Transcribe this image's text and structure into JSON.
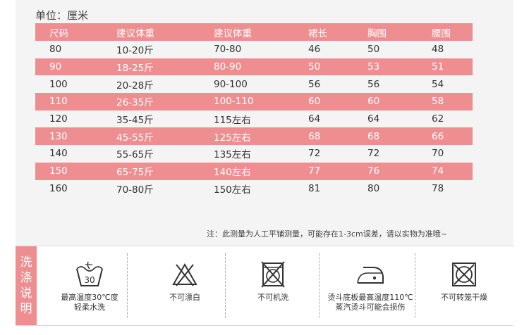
{
  "unit_label": "单位：厘米",
  "table": {
    "headers": [
      "尺码",
      "建议体重",
      "建议体重",
      "裙长",
      "胸围",
      "腰围"
    ],
    "rows": [
      [
        "80",
        "10-20斤",
        "70-80",
        "46",
        "50",
        "48"
      ],
      [
        "90",
        "18-25斤",
        "80-90",
        "50",
        "53",
        "51"
      ],
      [
        "100",
        "20-28斤",
        "90-100",
        "56",
        "56",
        "54"
      ],
      [
        "110",
        "26-35斤",
        "100-110",
        "60",
        "60",
        "58"
      ],
      [
        "120",
        "35-45斤",
        "115左右",
        "64",
        "64",
        "62"
      ],
      [
        "130",
        "45-55斤",
        "125左右",
        "68",
        "68",
        "66"
      ],
      [
        "140",
        "55-65斤",
        "135左右",
        "72",
        "72",
        "70"
      ],
      [
        "150",
        "65-75斤",
        "140左右",
        "77",
        "76",
        "74"
      ],
      [
        "160",
        "70-80斤",
        "150左右",
        "81",
        "80",
        "78"
      ]
    ]
  },
  "note": "注：此测量为人工平铺测量，可能存在1-3cm误差，请以实物为准哦~",
  "care": {
    "title": [
      "洗",
      "涤",
      "说",
      "明"
    ],
    "wash_temp": "30",
    "items": [
      {
        "icon": "wash-30-icon",
        "label_lines": [
          "最高温度30℃度",
          "轻柔水洗"
        ]
      },
      {
        "icon": "no-bleach-icon",
        "label_lines": [
          "不可漂白"
        ]
      },
      {
        "icon": "no-machine-wash-icon",
        "label_lines": [
          "不可机洗"
        ]
      },
      {
        "icon": "iron-110-icon",
        "label_lines": [
          "烫斗底板最高温度110℃",
          "蒸汽烫斗可能会损伤"
        ]
      },
      {
        "icon": "no-tumble-dry-icon",
        "label_lines": [
          "不可转笼干燥"
        ]
      }
    ]
  },
  "colors": {
    "accent": "#ef8e91",
    "panel": "#f4f4f4"
  }
}
